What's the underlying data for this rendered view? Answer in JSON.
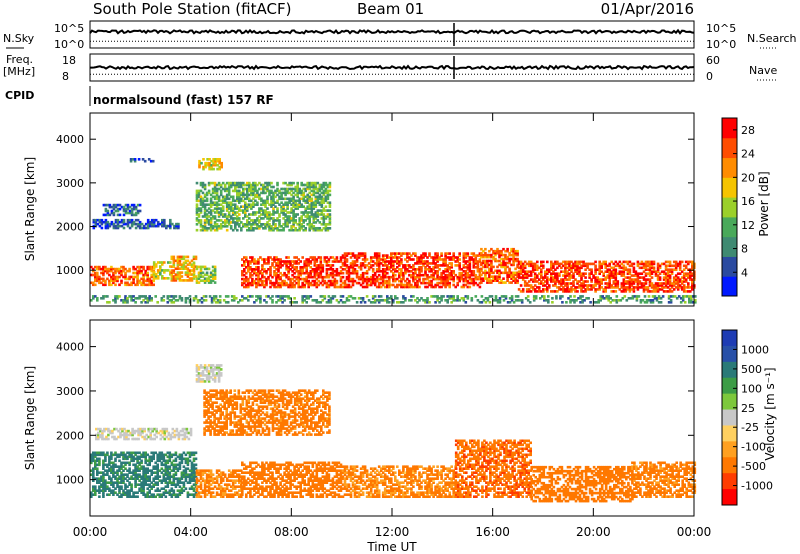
{
  "header": {
    "station": "South Pole Station (fitACF)",
    "beam": "Beam 01",
    "date": "01/Apr/2016"
  },
  "strips": {
    "nsky_label": "N.Sky",
    "nsky_ticks": [
      "10^5",
      "10^0"
    ],
    "nsearch_label": "N.Search",
    "nsearch_ticks": [
      "10^5",
      "10^0"
    ],
    "freq_label_top": "Freq.",
    "freq_label_bottom": "[MHz]",
    "freq_ticks": [
      "18",
      "8"
    ],
    "nave_label": "Nave",
    "nave_ticks": [
      "60",
      "0"
    ],
    "cpid_label": "CPID",
    "cpid_value": "normalsound (fast) 157 RF"
  },
  "colors": {
    "power": [
      "#0019ff",
      "#2a4aa0",
      "#3f8a72",
      "#49a95a",
      "#9bd02a",
      "#f5c400",
      "#ff8c00",
      "#ff4d00",
      "#ff0000"
    ],
    "velocity": [
      "#ff0000",
      "#ff3c00",
      "#ff7800",
      "#ffa020",
      "#ffd060",
      "#c8c8c8",
      "#7dc83c",
      "#3c9c46",
      "#2a7a78",
      "#2850a8",
      "#1e3cb4"
    ]
  },
  "chart_data": [
    {
      "type": "heatmap",
      "name": "power",
      "xlabel": "Time UT",
      "ylabel": "Slant Range [km]",
      "x_ticks": [
        "00:00",
        "04:00",
        "08:00",
        "12:00",
        "16:00",
        "20:00",
        "00:00"
      ],
      "y_ticks": [
        1000,
        2000,
        3000,
        4000
      ],
      "xlim": [
        0,
        24
      ],
      "ylim": [
        180,
        4600
      ],
      "colorbar_label": "Power [dB]",
      "colorbar_ticks": [
        4,
        8,
        12,
        16,
        20,
        24,
        28
      ],
      "colorbar_range": [
        0,
        30
      ],
      "regions": [
        {
          "t": [
            0.0,
            2.5
          ],
          "r": [
            650,
            1100
          ],
          "value": 24
        },
        {
          "t": [
            2.5,
            3.2
          ],
          "r": [
            800,
            1200
          ],
          "value": 16
        },
        {
          "t": [
            3.2,
            4.2
          ],
          "r": [
            750,
            1300
          ],
          "value": 20
        },
        {
          "t": [
            4.2,
            5.0
          ],
          "r": [
            700,
            1100
          ],
          "value": 14
        },
        {
          "t": [
            6.0,
            10.0
          ],
          "r": [
            600,
            1300
          ],
          "value": 26
        },
        {
          "t": [
            10.0,
            15.5
          ],
          "r": [
            600,
            1400
          ],
          "value": 26
        },
        {
          "t": [
            15.5,
            17.0
          ],
          "r": [
            700,
            1500
          ],
          "value": 24
        },
        {
          "t": [
            17.0,
            24.0
          ],
          "r": [
            500,
            1200
          ],
          "value": 26
        },
        {
          "t": [
            0.1,
            3.5
          ],
          "r": [
            1950,
            2150
          ],
          "value": 5
        },
        {
          "t": [
            0.5,
            2.0
          ],
          "r": [
            2250,
            2500
          ],
          "value": 6
        },
        {
          "t": [
            4.2,
            9.5
          ],
          "r": [
            1900,
            3000
          ],
          "value": 12
        },
        {
          "t": [
            4.3,
            5.2
          ],
          "r": [
            3300,
            3550
          ],
          "value": 18
        },
        {
          "t": [
            1.5,
            2.5
          ],
          "r": [
            3480,
            3550
          ],
          "value": 5
        },
        {
          "t": [
            0.0,
            24.0
          ],
          "r": [
            250,
            400
          ],
          "value": 10
        }
      ]
    },
    {
      "type": "heatmap",
      "name": "velocity",
      "xlabel": "Time UT",
      "ylabel": "Slant Range [km]",
      "x_ticks": [
        "00:00",
        "04:00",
        "08:00",
        "12:00",
        "16:00",
        "20:00",
        "00:00"
      ],
      "y_ticks": [
        1000,
        2000,
        3000,
        4000
      ],
      "xlim": [
        0,
        24
      ],
      "ylim": [
        180,
        4600
      ],
      "colorbar_label": "Velocity [m s⁻¹]",
      "colorbar_ticks": [
        "1000",
        "500",
        "100",
        "25",
        "-25",
        "-100",
        "-500",
        "-1000"
      ],
      "regions": [
        {
          "t": [
            0.0,
            4.2
          ],
          "r": [
            600,
            1600
          ],
          "value": 150
        },
        {
          "t": [
            4.2,
            6.0
          ],
          "r": [
            600,
            1200
          ],
          "value": -120
        },
        {
          "t": [
            6.0,
            10.0
          ],
          "r": [
            600,
            1400
          ],
          "value": -250
        },
        {
          "t": [
            10.0,
            14.5
          ],
          "r": [
            600,
            1300
          ],
          "value": -120
        },
        {
          "t": [
            14.5,
            17.5
          ],
          "r": [
            600,
            1900
          ],
          "value": -400
        },
        {
          "t": [
            17.5,
            21.5
          ],
          "r": [
            500,
            1300
          ],
          "value": -300
        },
        {
          "t": [
            21.5,
            24.0
          ],
          "r": [
            600,
            1400
          ],
          "value": -150
        },
        {
          "t": [
            0.2,
            4.0
          ],
          "r": [
            1900,
            2150
          ],
          "value": 0
        },
        {
          "t": [
            4.5,
            9.5
          ],
          "r": [
            2000,
            3000
          ],
          "value": -200
        },
        {
          "t": [
            4.2,
            5.2
          ],
          "r": [
            3200,
            3600
          ],
          "value": 0
        }
      ]
    }
  ]
}
